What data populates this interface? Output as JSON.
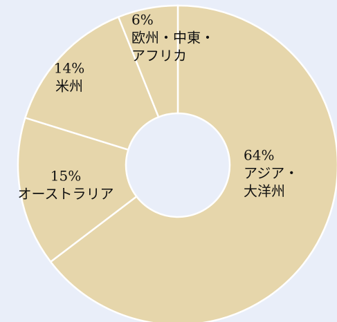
{
  "chart_data": {
    "type": "donut",
    "categories": [
      [
        "アジア・",
        "大洋州"
      ],
      [
        "オーストラリア"
      ],
      [
        "米州"
      ],
      [
        "欧州・中東・",
        "アフリカ"
      ]
    ],
    "values": [
      64,
      15,
      14,
      6
    ],
    "value_labels": [
      "64%",
      "15%",
      "14%",
      "6%"
    ],
    "color": "#e6d6ab"
  }
}
